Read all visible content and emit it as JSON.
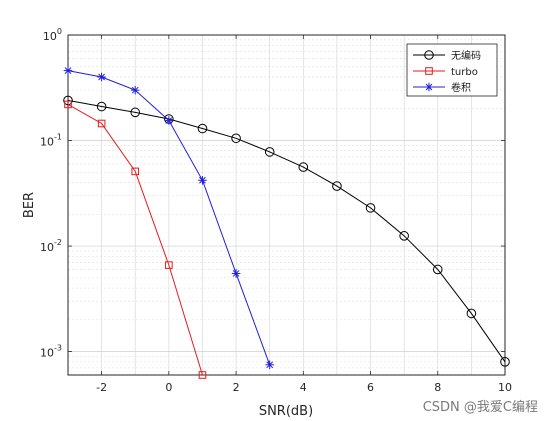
{
  "chart_data": {
    "type": "line",
    "xlabel": "SNR(dB)",
    "ylabel": "BER",
    "xlim": [
      -3,
      10
    ],
    "ylim": [
      0.0006,
      1
    ],
    "yscale": "log",
    "grid": true,
    "legend_position": "top-right",
    "xticks": [
      "-2",
      "0",
      "2",
      "4",
      "6",
      "8",
      "10"
    ],
    "yticks": [
      {
        "base": "10",
        "exp": "0"
      },
      {
        "base": "10",
        "exp": "-1"
      },
      {
        "base": "10",
        "exp": "-2"
      },
      {
        "base": "10",
        "exp": "-3"
      }
    ],
    "series": [
      {
        "name": "无编码",
        "color": "#000000",
        "marker": "circle",
        "x": [
          -3,
          -2,
          -1,
          0,
          1,
          2,
          3,
          4,
          5,
          6,
          7,
          8,
          9,
          10
        ],
        "y": [
          0.24,
          0.21,
          0.185,
          0.16,
          0.13,
          0.105,
          0.078,
          0.056,
          0.037,
          0.023,
          0.0125,
          0.006,
          0.0023,
          0.0008
        ]
      },
      {
        "name": "turbo",
        "color": "#e41a1c",
        "marker": "square",
        "x": [
          -3,
          -2,
          -1,
          0,
          1
        ],
        "y": [
          0.22,
          0.145,
          0.051,
          0.0066,
          0.0006
        ]
      },
      {
        "name": "卷积",
        "color": "#1f1fd8",
        "marker": "asterisk",
        "x": [
          -3,
          -2,
          -1,
          0,
          1,
          2,
          3
        ],
        "y": [
          0.46,
          0.4,
          0.3,
          0.155,
          0.042,
          0.0055,
          0.00075
        ]
      }
    ]
  },
  "watermark": "CSDN @我爱C编程"
}
